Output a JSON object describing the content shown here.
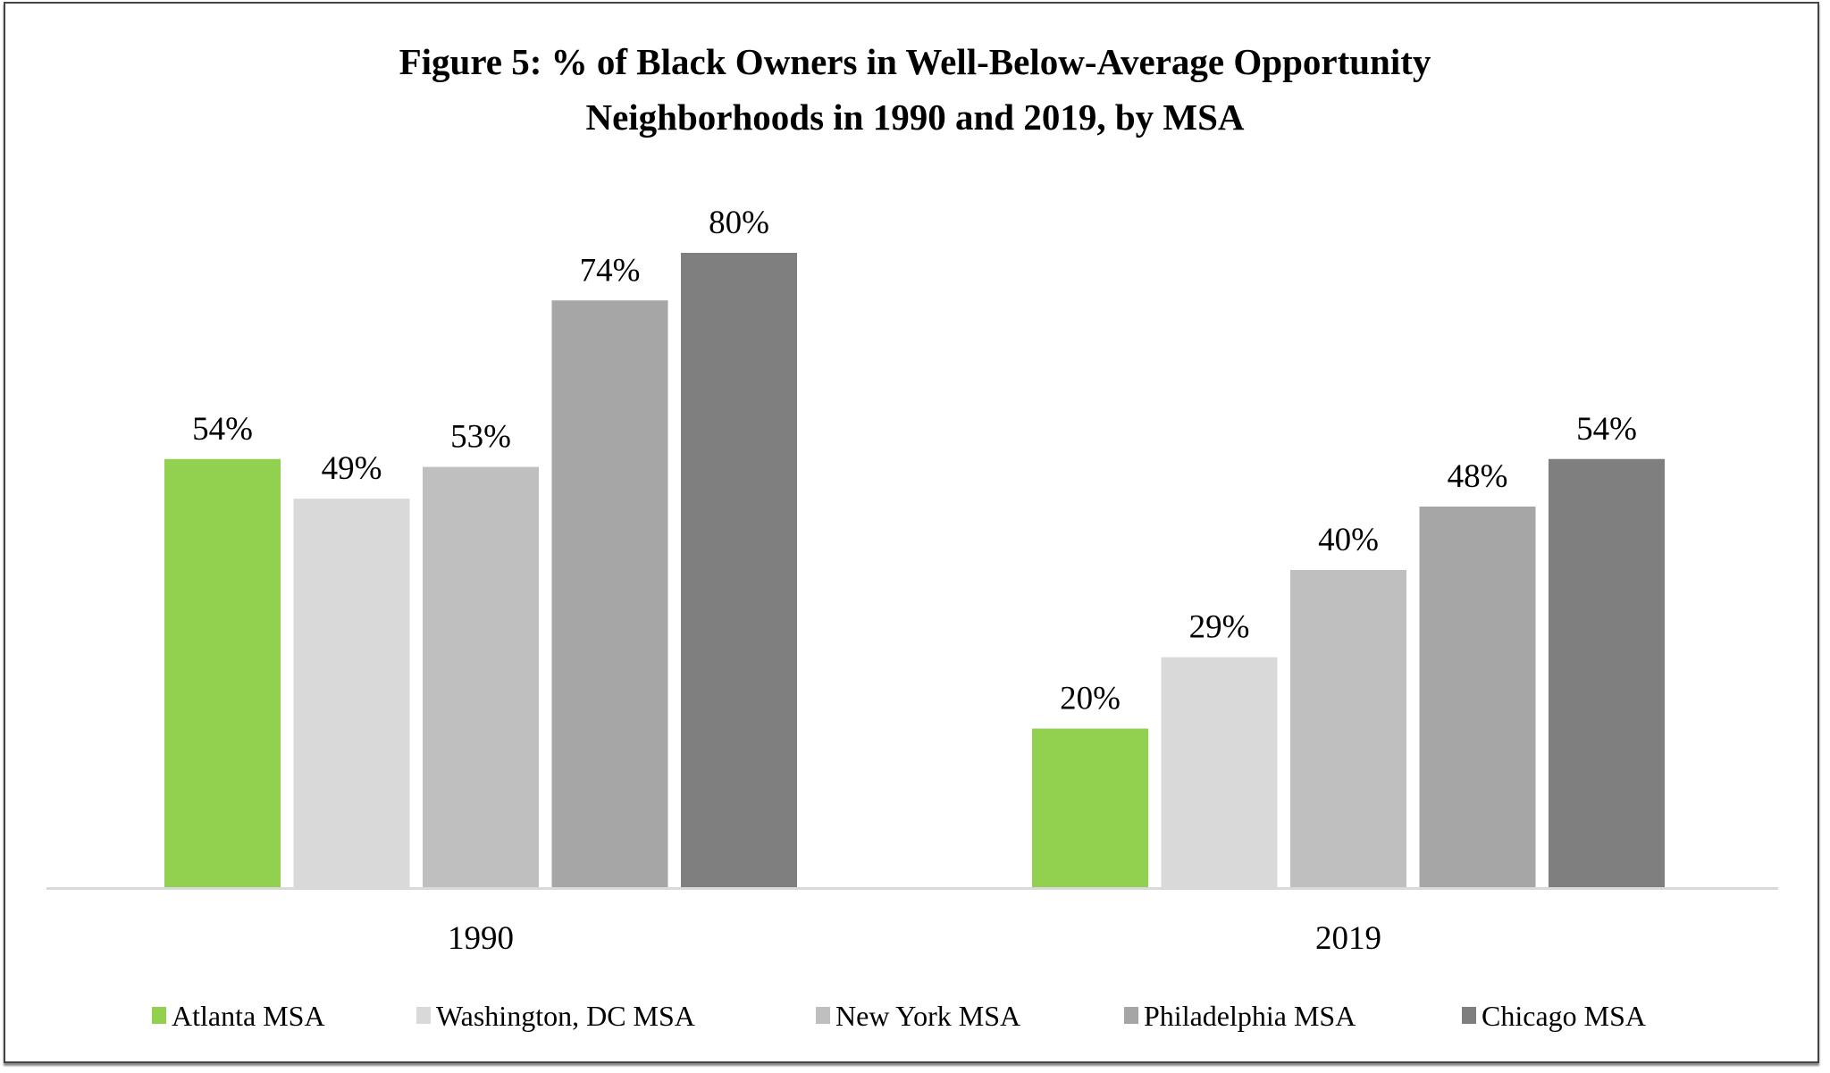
{
  "chart_data": {
    "type": "bar",
    "title_line1": "Figure 5: % of Black Owners in Well-Below-Average Opportunity",
    "title_line2": "Neighborhoods in 1990 and 2019, by MSA",
    "categories": [
      "1990",
      "2019"
    ],
    "series": [
      {
        "name": "Atlanta MSA",
        "color": "#92d050",
        "values": [
          54,
          20
        ],
        "labels": [
          "54%",
          "20%"
        ]
      },
      {
        "name": "Washington, DC MSA",
        "color": "#d9d9d9",
        "values": [
          49,
          29
        ],
        "labels": [
          "49%",
          "29%"
        ]
      },
      {
        "name": "New York MSA",
        "color": "#bfbfbf",
        "values": [
          53,
          40
        ],
        "labels": [
          "53%",
          "40%"
        ]
      },
      {
        "name": "Philadelphia MSA",
        "color": "#a6a6a6",
        "values": [
          74,
          48
        ],
        "labels": [
          "74%",
          "48%"
        ]
      },
      {
        "name": "Chicago MSA",
        "color": "#7f7f7f",
        "values": [
          80,
          54
        ],
        "labels": [
          "80%",
          "54%"
        ]
      }
    ],
    "xlabel": "",
    "ylabel": "",
    "unit": "%",
    "grid": false,
    "y_axis_visible": false,
    "legend_position": "bottom"
  }
}
